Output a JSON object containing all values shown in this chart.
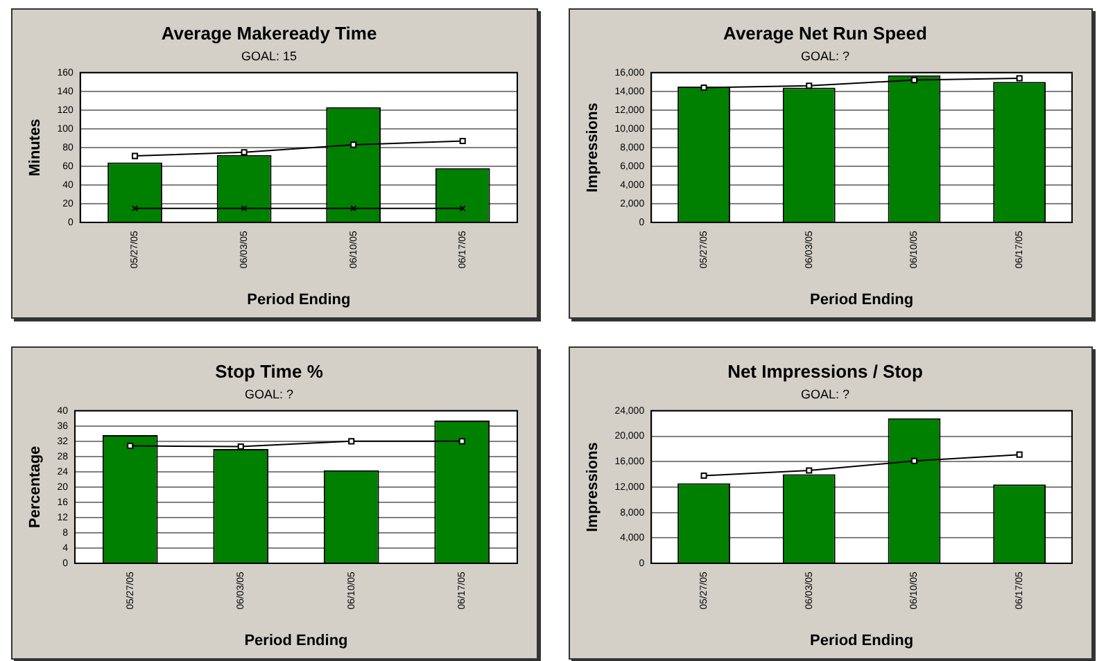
{
  "chart_data": [
    {
      "type": "bar",
      "title": "Average Makeready Time",
      "subtitle": "GOAL: 15",
      "xlabel": "Period Ending",
      "ylabel": "Minutes",
      "categories": [
        "05/27/05",
        "06/03/05",
        "06/10/05",
        "06/17/05"
      ],
      "series": [
        {
          "color": "#008000",
          "values": [
            64,
            72,
            123,
            58
          ]
        },
        {
          "type": "line",
          "color": "#000000",
          "marker": "square",
          "values": [
            71,
            75,
            83,
            87
          ]
        },
        {
          "type": "line",
          "color": "#000000",
          "marker": "cross",
          "values": [
            15,
            15,
            15,
            15
          ]
        }
      ],
      "ylim": [
        0,
        160
      ],
      "yticks": [
        0,
        20,
        40,
        60,
        80,
        100,
        120,
        140,
        160
      ],
      "grid": "y",
      "legend": false
    },
    {
      "type": "bar",
      "title": "Average Net Run Speed",
      "subtitle": "GOAL: ?",
      "xlabel": "Period Ending",
      "ylabel": "Impressions",
      "categories": [
        "05/27/05",
        "06/03/05",
        "06/10/05",
        "06/17/05"
      ],
      "series": [
        {
          "color": "#008000",
          "values": [
            14500,
            14400,
            15700,
            15000
          ]
        },
        {
          "type": "line",
          "color": "#000000",
          "marker": "square",
          "values": [
            14400,
            14600,
            15200,
            15400
          ]
        }
      ],
      "ylim": [
        0,
        16000
      ],
      "yticks": [
        0,
        {
          "value": 2000,
          "label": "2,000"
        },
        {
          "value": 4000,
          "label": "4,000"
        },
        {
          "value": 6000,
          "label": "6,000"
        },
        {
          "value": 8000,
          "label": "8,000"
        },
        {
          "value": 10000,
          "label": "10,000"
        },
        {
          "value": 12000,
          "label": "12,000"
        },
        {
          "value": 14000,
          "label": "14,000"
        },
        {
          "value": 16000,
          "label": "16,000"
        }
      ],
      "grid": "y",
      "legend": false
    },
    {
      "type": "bar",
      "title": "Stop Time %",
      "subtitle": "GOAL: ?",
      "xlabel": "Period Ending",
      "ylabel": "Percentage",
      "categories": [
        "05/27/05",
        "06/03/05",
        "06/10/05",
        "06/17/05"
      ],
      "series": [
        {
          "color": "#008000",
          "values": [
            33.6,
            30,
            24.4,
            37.4
          ]
        },
        {
          "type": "line",
          "color": "#000000",
          "marker": "square",
          "values": [
            30.8,
            30.6,
            32,
            32
          ]
        }
      ],
      "ylim": [
        0,
        40
      ],
      "yticks": [
        0,
        4,
        8,
        12,
        16,
        20,
        24,
        28,
        32,
        36,
        40
      ],
      "grid": "y",
      "legend": false
    },
    {
      "type": "bar",
      "title": "Net Impressions / Stop",
      "subtitle": "GOAL: ?",
      "xlabel": "Period Ending",
      "ylabel": "Impressions",
      "categories": [
        "05/27/05",
        "06/03/05",
        "06/10/05",
        "06/17/05"
      ],
      "series": [
        {
          "color": "#008000",
          "values": [
            12600,
            14000,
            22800,
            12400
          ]
        },
        {
          "type": "line",
          "color": "#000000",
          "marker": "square",
          "values": [
            13800,
            14600,
            16100,
            17100
          ]
        }
      ],
      "ylim": [
        0,
        24000
      ],
      "yticks": [
        0,
        {
          "value": 4000,
          "label": "4,000"
        },
        {
          "value": 8000,
          "label": "8,000"
        },
        {
          "value": 12000,
          "label": "12,000"
        },
        {
          "value": 16000,
          "label": "16,000"
        },
        {
          "value": 20000,
          "label": "20,000"
        },
        {
          "value": 24000,
          "label": "24,000"
        }
      ],
      "grid": "y",
      "legend": false
    }
  ]
}
